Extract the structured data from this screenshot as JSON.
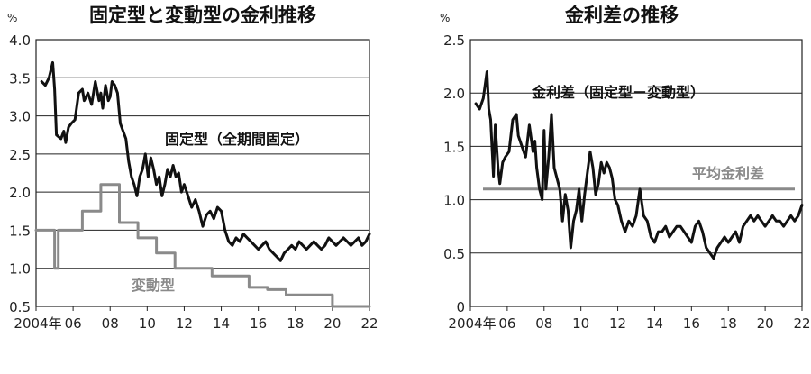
{
  "chart_data": [
    {
      "type": "line",
      "title": "固定型と変動型の金利推移",
      "unit": "%",
      "ylim": [
        0.5,
        4.0
      ],
      "yticks": [
        "4.0",
        "3.5",
        "3.0",
        "2.5",
        "2.0",
        "1.5",
        "1.0",
        "0.5"
      ],
      "xticks": [
        "2004年",
        "06",
        "08",
        "10",
        "12",
        "14",
        "16",
        "18",
        "20",
        "22"
      ],
      "xlim": [
        2004,
        2022
      ],
      "grid": true,
      "series": [
        {
          "name": "固定型（全期間固定）",
          "color": "#111111",
          "x": [
            2004.3,
            2004.5,
            2004.7,
            2004.9,
            2005.0,
            2005.1,
            2005.25,
            2005.35,
            2005.5,
            2005.6,
            2005.75,
            2005.9,
            2006.1,
            2006.3,
            2006.5,
            2006.6,
            2006.8,
            2007.0,
            2007.2,
            2007.4,
            2007.5,
            2007.6,
            2007.75,
            2007.9,
            2008.0,
            2008.1,
            2008.25,
            2008.4,
            2008.55,
            2008.7,
            2008.85,
            2009.0,
            2009.15,
            2009.3,
            2009.45,
            2009.6,
            2009.75,
            2009.9,
            2010.05,
            2010.2,
            2010.35,
            2010.5,
            2010.65,
            2010.8,
            2010.95,
            2011.1,
            2011.25,
            2011.4,
            2011.55,
            2011.7,
            2011.85,
            2012.0,
            2012.2,
            2012.4,
            2012.6,
            2012.8,
            2013.0,
            2013.2,
            2013.4,
            2013.6,
            2013.8,
            2014.0,
            2014.2,
            2014.4,
            2014.6,
            2014.8,
            2015.0,
            2015.2,
            2015.4,
            2015.6,
            2015.8,
            2016.0,
            2016.2,
            2016.4,
            2016.6,
            2016.8,
            2017.0,
            2017.2,
            2017.4,
            2017.6,
            2017.8,
            2018.0,
            2018.2,
            2018.4,
            2018.6,
            2018.8,
            2019.0,
            2019.2,
            2019.4,
            2019.6,
            2019.8,
            2020.0,
            2020.2,
            2020.4,
            2020.6,
            2020.8,
            2021.0,
            2021.2,
            2021.4,
            2021.6,
            2021.8,
            2022.0
          ],
          "values": [
            3.45,
            3.4,
            3.5,
            3.7,
            3.35,
            2.75,
            2.72,
            2.7,
            2.8,
            2.65,
            2.85,
            2.9,
            2.95,
            3.3,
            3.35,
            3.2,
            3.3,
            3.15,
            3.45,
            3.2,
            3.3,
            3.1,
            3.4,
            3.2,
            3.25,
            3.45,
            3.4,
            3.3,
            2.9,
            2.8,
            2.7,
            2.4,
            2.2,
            2.1,
            1.95,
            2.2,
            2.3,
            2.5,
            2.2,
            2.45,
            2.3,
            2.1,
            2.2,
            1.95,
            2.1,
            2.3,
            2.2,
            2.35,
            2.2,
            2.25,
            2.0,
            2.1,
            1.95,
            1.8,
            1.9,
            1.75,
            1.55,
            1.7,
            1.75,
            1.65,
            1.8,
            1.75,
            1.5,
            1.35,
            1.3,
            1.4,
            1.35,
            1.45,
            1.4,
            1.35,
            1.3,
            1.25,
            1.3,
            1.35,
            1.25,
            1.2,
            1.15,
            1.1,
            1.2,
            1.25,
            1.3,
            1.25,
            1.35,
            1.3,
            1.25,
            1.3,
            1.35,
            1.3,
            1.25,
            1.3,
            1.4,
            1.35,
            1.3,
            1.35,
            1.4,
            1.35,
            1.3,
            1.35,
            1.4,
            1.3,
            1.35,
            1.45
          ]
        },
        {
          "name": "変動型",
          "color": "#8a8a8a",
          "x": [
            2004.0,
            2005.0,
            2005.0,
            2005.2,
            2005.2,
            2005.5,
            2005.5,
            2006.5,
            2006.5,
            2007.5,
            2007.5,
            2008.5,
            2008.5,
            2009.5,
            2009.5,
            2010.5,
            2010.5,
            2011.5,
            2011.5,
            2012.0,
            2012.0,
            2013.5,
            2013.5,
            2015.5,
            2015.5,
            2016.5,
            2016.5,
            2017.5,
            2017.5,
            2020.0,
            2020.0,
            2022.0
          ],
          "values": [
            1.5,
            1.5,
            1.0,
            1.0,
            1.5,
            1.5,
            1.5,
            1.5,
            1.75,
            1.75,
            2.1,
            2.1,
            1.6,
            1.6,
            1.4,
            1.4,
            1.2,
            1.2,
            1.0,
            1.0,
            1.0,
            1.0,
            0.9,
            0.9,
            0.75,
            0.75,
            0.72,
            0.72,
            0.65,
            0.65,
            0.5,
            0.5
          ]
        }
      ],
      "annotations": {
        "fixed": "固定型（全期間固定）",
        "variable": "変動型"
      }
    },
    {
      "type": "line",
      "title": "金利差の推移",
      "unit": "%",
      "ylim": [
        0,
        2.5
      ],
      "yticks": [
        "2.5",
        "2.0",
        "1.5",
        "1.0",
        "0.5",
        "0"
      ],
      "xticks": [
        "2004年",
        "06",
        "08",
        "10",
        "12",
        "14",
        "16",
        "18",
        "20",
        "22"
      ],
      "xlim": [
        2004,
        2022
      ],
      "grid": true,
      "series": [
        {
          "name": "金利差（固定型－変動型）",
          "color": "#111111",
          "x": [
            2004.3,
            2004.5,
            2004.7,
            2004.9,
            2005.0,
            2005.1,
            2005.25,
            2005.35,
            2005.5,
            2005.6,
            2005.75,
            2005.9,
            2006.1,
            2006.3,
            2006.5,
            2006.6,
            2006.8,
            2007.0,
            2007.2,
            2007.4,
            2007.5,
            2007.6,
            2007.75,
            2007.9,
            2008.0,
            2008.1,
            2008.25,
            2008.4,
            2008.55,
            2008.7,
            2008.85,
            2009.0,
            2009.15,
            2009.3,
            2009.45,
            2009.6,
            2009.75,
            2009.9,
            2010.05,
            2010.2,
            2010.35,
            2010.5,
            2010.65,
            2010.8,
            2010.95,
            2011.1,
            2011.25,
            2011.4,
            2011.55,
            2011.7,
            2011.85,
            2012.0,
            2012.2,
            2012.4,
            2012.6,
            2012.8,
            2013.0,
            2013.2,
            2013.4,
            2013.6,
            2013.8,
            2014.0,
            2014.2,
            2014.4,
            2014.6,
            2014.8,
            2015.0,
            2015.2,
            2015.4,
            2015.6,
            2015.8,
            2016.0,
            2016.2,
            2016.4,
            2016.6,
            2016.8,
            2017.0,
            2017.2,
            2017.4,
            2017.6,
            2017.8,
            2018.0,
            2018.2,
            2018.4,
            2018.6,
            2018.8,
            2019.0,
            2019.2,
            2019.4,
            2019.6,
            2019.8,
            2020.0,
            2020.2,
            2020.4,
            2020.6,
            2020.8,
            2021.0,
            2021.2,
            2021.4,
            2021.6,
            2021.8,
            2022.0
          ],
          "values": [
            1.9,
            1.85,
            1.95,
            2.2,
            1.85,
            1.75,
            1.22,
            1.7,
            1.3,
            1.15,
            1.35,
            1.4,
            1.45,
            1.75,
            1.8,
            1.6,
            1.5,
            1.4,
            1.7,
            1.45,
            1.55,
            1.3,
            1.1,
            1.0,
            1.65,
            1.1,
            1.4,
            1.8,
            1.3,
            1.2,
            1.1,
            0.8,
            1.05,
            0.9,
            0.55,
            0.8,
            0.9,
            1.1,
            0.8,
            1.05,
            1.25,
            1.45,
            1.3,
            1.05,
            1.15,
            1.35,
            1.25,
            1.35,
            1.3,
            1.2,
            1.0,
            0.95,
            0.8,
            0.7,
            0.8,
            0.75,
            0.85,
            1.1,
            0.85,
            0.8,
            0.65,
            0.6,
            0.7,
            0.7,
            0.75,
            0.65,
            0.7,
            0.75,
            0.75,
            0.7,
            0.65,
            0.6,
            0.75,
            0.8,
            0.7,
            0.55,
            0.5,
            0.45,
            0.55,
            0.6,
            0.65,
            0.6,
            0.65,
            0.7,
            0.6,
            0.75,
            0.8,
            0.85,
            0.8,
            0.85,
            0.8,
            0.75,
            0.8,
            0.85,
            0.8,
            0.8,
            0.75,
            0.8,
            0.85,
            0.8,
            0.85,
            0.95
          ]
        }
      ],
      "reference_line": {
        "name": "平均金利差",
        "value": 1.1,
        "color": "#8a8a8a"
      },
      "annotations": {
        "spread": "金利差（固定型－変動型）",
        "average": "平均金利差"
      }
    }
  ]
}
